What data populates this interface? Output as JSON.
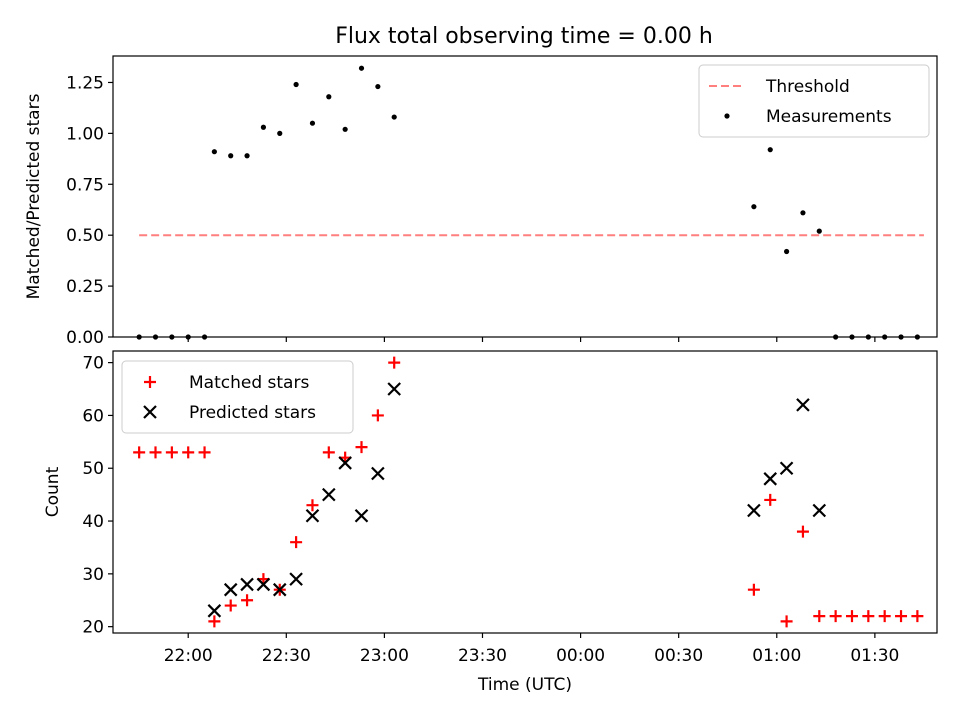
{
  "figure": {
    "title": "Flux total observing time = 0.00 h"
  },
  "chart_data": [
    {
      "type": "scatter",
      "title": "Flux total observing time = 0.00 h",
      "xlabel": "",
      "ylabel": "Matched/Predicted stars",
      "xlim": [
        "21:37",
        "01:49"
      ],
      "ylim": [
        0,
        1.38
      ],
      "x_ticks": [
        "22:00",
        "22:30",
        "23:00",
        "23:30",
        "00:00",
        "00:30",
        "01:00",
        "01:30"
      ],
      "y_ticks": [
        "0.00",
        "0.25",
        "0.50",
        "0.75",
        "1.00",
        "1.25"
      ],
      "legend_position": "top-right",
      "series": [
        {
          "name": "Threshold",
          "kind": "line",
          "style": "dashed",
          "color": "#ff7f7f",
          "points": [
            [
              "21:45",
              0.5
            ],
            [
              "01:45",
              0.5
            ]
          ]
        },
        {
          "name": "Measurements",
          "kind": "scatter",
          "marker": "dot",
          "color": "#000000",
          "points": [
            [
              "21:45",
              0.0
            ],
            [
              "21:50",
              0.0
            ],
            [
              "21:55",
              0.0
            ],
            [
              "22:00",
              0.0
            ],
            [
              "22:05",
              0.0
            ],
            [
              "22:08",
              0.91
            ],
            [
              "22:13",
              0.89
            ],
            [
              "22:18",
              0.89
            ],
            [
              "22:23",
              1.03
            ],
            [
              "22:28",
              1.0
            ],
            [
              "22:33",
              1.24
            ],
            [
              "22:38",
              1.05
            ],
            [
              "22:43",
              1.18
            ],
            [
              "22:48",
              1.02
            ],
            [
              "22:53",
              1.32
            ],
            [
              "22:58",
              1.23
            ],
            [
              "23:03",
              1.08
            ],
            [
              "00:53",
              0.64
            ],
            [
              "00:58",
              0.92
            ],
            [
              "01:03",
              0.42
            ],
            [
              "01:08",
              0.61
            ],
            [
              "01:13",
              0.52
            ],
            [
              "01:18",
              0.0
            ],
            [
              "01:23",
              0.0
            ],
            [
              "01:28",
              0.0
            ],
            [
              "01:33",
              0.0
            ],
            [
              "01:38",
              0.0
            ],
            [
              "01:43",
              0.0
            ]
          ]
        }
      ]
    },
    {
      "type": "scatter",
      "title": "",
      "xlabel": "Time (UTC)",
      "ylabel": "Count",
      "xlim": [
        "21:37",
        "01:49"
      ],
      "ylim": [
        18.8,
        72.2
      ],
      "x_ticks": [
        "22:00",
        "22:30",
        "23:00",
        "23:30",
        "00:00",
        "00:30",
        "01:00",
        "01:30"
      ],
      "y_ticks": [
        "20",
        "30",
        "40",
        "50",
        "60",
        "70"
      ],
      "legend_position": "top-left",
      "series": [
        {
          "name": "Matched stars",
          "kind": "scatter",
          "marker": "plus",
          "color": "#ff0000",
          "points": [
            [
              "21:45",
              53
            ],
            [
              "21:50",
              53
            ],
            [
              "21:55",
              53
            ],
            [
              "22:00",
              53
            ],
            [
              "22:05",
              53
            ],
            [
              "22:08",
              21
            ],
            [
              "22:13",
              24
            ],
            [
              "22:18",
              25
            ],
            [
              "22:23",
              29
            ],
            [
              "22:28",
              27
            ],
            [
              "22:33",
              36
            ],
            [
              "22:38",
              43
            ],
            [
              "22:43",
              53
            ],
            [
              "22:48",
              52
            ],
            [
              "22:53",
              54
            ],
            [
              "22:58",
              60
            ],
            [
              "23:03",
              70
            ],
            [
              "00:53",
              27
            ],
            [
              "00:58",
              44
            ],
            [
              "01:03",
              21
            ],
            [
              "01:08",
              38
            ],
            [
              "01:13",
              22
            ],
            [
              "01:18",
              22
            ],
            [
              "01:23",
              22
            ],
            [
              "01:28",
              22
            ],
            [
              "01:33",
              22
            ],
            [
              "01:38",
              22
            ],
            [
              "01:43",
              22
            ]
          ]
        },
        {
          "name": "Predicted stars",
          "kind": "scatter",
          "marker": "x",
          "color": "#000000",
          "points": [
            [
              "22:08",
              23
            ],
            [
              "22:13",
              27
            ],
            [
              "22:18",
              28
            ],
            [
              "22:23",
              28
            ],
            [
              "22:28",
              27
            ],
            [
              "22:33",
              29
            ],
            [
              "22:38",
              41
            ],
            [
              "22:43",
              45
            ],
            [
              "22:48",
              51
            ],
            [
              "22:53",
              41
            ],
            [
              "22:58",
              49
            ],
            [
              "23:03",
              65
            ],
            [
              "00:53",
              42
            ],
            [
              "00:58",
              48
            ],
            [
              "01:03",
              50
            ],
            [
              "01:08",
              62
            ],
            [
              "01:13",
              42
            ]
          ]
        }
      ]
    }
  ]
}
